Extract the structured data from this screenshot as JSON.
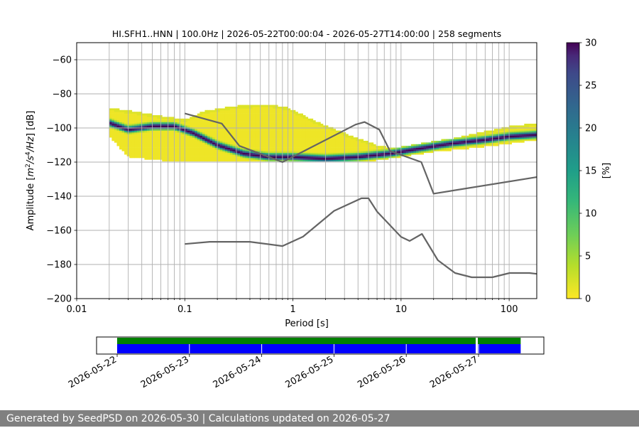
{
  "chart_data": {
    "type": "heatmap",
    "title": "HI.SFH1..HNN | 100.0Hz | 2026-05-22T00:00:04 - 2026-05-27T14:00:00 | 258 segments",
    "xlabel": "Period [s]",
    "ylabel_parts": [
      "Amplitude [",
      "m",
      "2",
      "/",
      "s",
      "4",
      "/",
      "Hz",
      "] [dB]"
    ],
    "x_scale": "log",
    "xlim": [
      0.01,
      180
    ],
    "ylim": [
      -200,
      -50
    ],
    "grid": true,
    "x_ticks": [
      {
        "value": 0.01,
        "label": "0.01"
      },
      {
        "value": 0.1,
        "label": "0.1"
      },
      {
        "value": 1,
        "label": "1"
      },
      {
        "value": 10,
        "label": "10"
      },
      {
        "value": 100,
        "label": "100"
      }
    ],
    "y_ticks": [
      {
        "value": -60,
        "label": "−60"
      },
      {
        "value": -80,
        "label": "−80"
      },
      {
        "value": -100,
        "label": "−100"
      },
      {
        "value": -120,
        "label": "−120"
      },
      {
        "value": -140,
        "label": "−140"
      },
      {
        "value": -160,
        "label": "−160"
      },
      {
        "value": -180,
        "label": "−180"
      },
      {
        "value": -200,
        "label": "−200"
      }
    ],
    "colorbar": {
      "label": "[%]",
      "range": [
        0,
        30
      ],
      "ticks": [
        {
          "value": 0,
          "label": "0"
        },
        {
          "value": 5,
          "label": "5"
        },
        {
          "value": 10,
          "label": "10"
        },
        {
          "value": 15,
          "label": "15"
        },
        {
          "value": 20,
          "label": "20"
        },
        {
          "value": 25,
          "label": "25"
        },
        {
          "value": 30,
          "label": "30"
        }
      ],
      "colormap": "viridis_r"
    },
    "psd_band": {
      "period_range": [
        0.02,
        180
      ],
      "mode": [
        [
          0.02,
          -97
        ],
        [
          0.03,
          -101
        ],
        [
          0.05,
          -99
        ],
        [
          0.08,
          -99
        ],
        [
          0.12,
          -103
        ],
        [
          0.2,
          -110
        ],
        [
          0.35,
          -115
        ],
        [
          0.6,
          -117
        ],
        [
          1,
          -117
        ],
        [
          2,
          -118
        ],
        [
          4,
          -117
        ],
        [
          8,
          -115
        ],
        [
          15,
          -112
        ],
        [
          30,
          -109
        ],
        [
          60,
          -107
        ],
        [
          100,
          -105
        ],
        [
          180,
          -104
        ]
      ],
      "upper_branch": [
        [
          0.02,
          -88
        ],
        [
          0.05,
          -92
        ],
        [
          0.1,
          -95
        ],
        [
          0.15,
          -90
        ],
        [
          0.3,
          -87
        ],
        [
          0.6,
          -86
        ],
        [
          0.9,
          -88
        ],
        [
          1.5,
          -95
        ],
        [
          3,
          -103
        ],
        [
          6,
          -110
        ],
        [
          10,
          -113
        ],
        [
          20,
          -109
        ],
        [
          50,
          -103
        ],
        [
          100,
          -99
        ],
        [
          180,
          -97
        ]
      ],
      "lower_branch": [
        [
          0.02,
          -105
        ],
        [
          0.03,
          -117
        ],
        [
          0.06,
          -119
        ],
        [
          0.1,
          -119
        ],
        [
          0.3,
          -119
        ],
        [
          1,
          -119
        ],
        [
          3,
          -119
        ],
        [
          6,
          -119
        ],
        [
          10,
          -117
        ],
        [
          20,
          -114
        ],
        [
          60,
          -111
        ],
        [
          180,
          -107
        ]
      ]
    },
    "noise_models": [
      {
        "points": [
          [
            0.1,
            -91.5
          ],
          [
            0.22,
            -97.4
          ],
          [
            0.32,
            -110.5
          ],
          [
            0.8,
            -120
          ],
          [
            3.8,
            -98
          ],
          [
            4.6,
            -96.5
          ],
          [
            6.3,
            -101
          ],
          [
            7.9,
            -113.5
          ],
          [
            15.4,
            -120
          ],
          [
            20,
            -138.5
          ],
          [
            180,
            -128.8
          ]
        ]
      },
      {
        "points": [
          [
            0.1,
            -168
          ],
          [
            0.17,
            -166.7
          ],
          [
            0.4,
            -166.7
          ],
          [
            0.8,
            -169.2
          ],
          [
            1.24,
            -163.7
          ],
          [
            2.4,
            -148.6
          ],
          [
            4.3,
            -141.2
          ],
          [
            5,
            -141.2
          ],
          [
            6,
            -149
          ],
          [
            10,
            -163.8
          ],
          [
            12,
            -166.2
          ],
          [
            15.6,
            -162.1
          ],
          [
            21.9,
            -177.5
          ],
          [
            31.6,
            -185
          ],
          [
            45,
            -187.5
          ],
          [
            70,
            -187.5
          ],
          [
            101,
            -185
          ],
          [
            154,
            -185
          ],
          [
            180,
            -185.5
          ]
        ]
      }
    ]
  },
  "timeline": {
    "bar_color_coverage": "#008000",
    "bar_color_segments": "#0000ff",
    "day_labels": [
      "2026-05-22",
      "2026-05-23",
      "2026-05-24",
      "2026-05-25",
      "2026-05-26",
      "2026-05-27"
    ],
    "coverage_start_day": 0,
    "coverage_end_day": 5.583,
    "gap_days": [
      4.975
    ]
  },
  "footer": {
    "text": "Generated by SeedPSD on 2026-05-30 | Calculations updated on 2026-05-27"
  }
}
